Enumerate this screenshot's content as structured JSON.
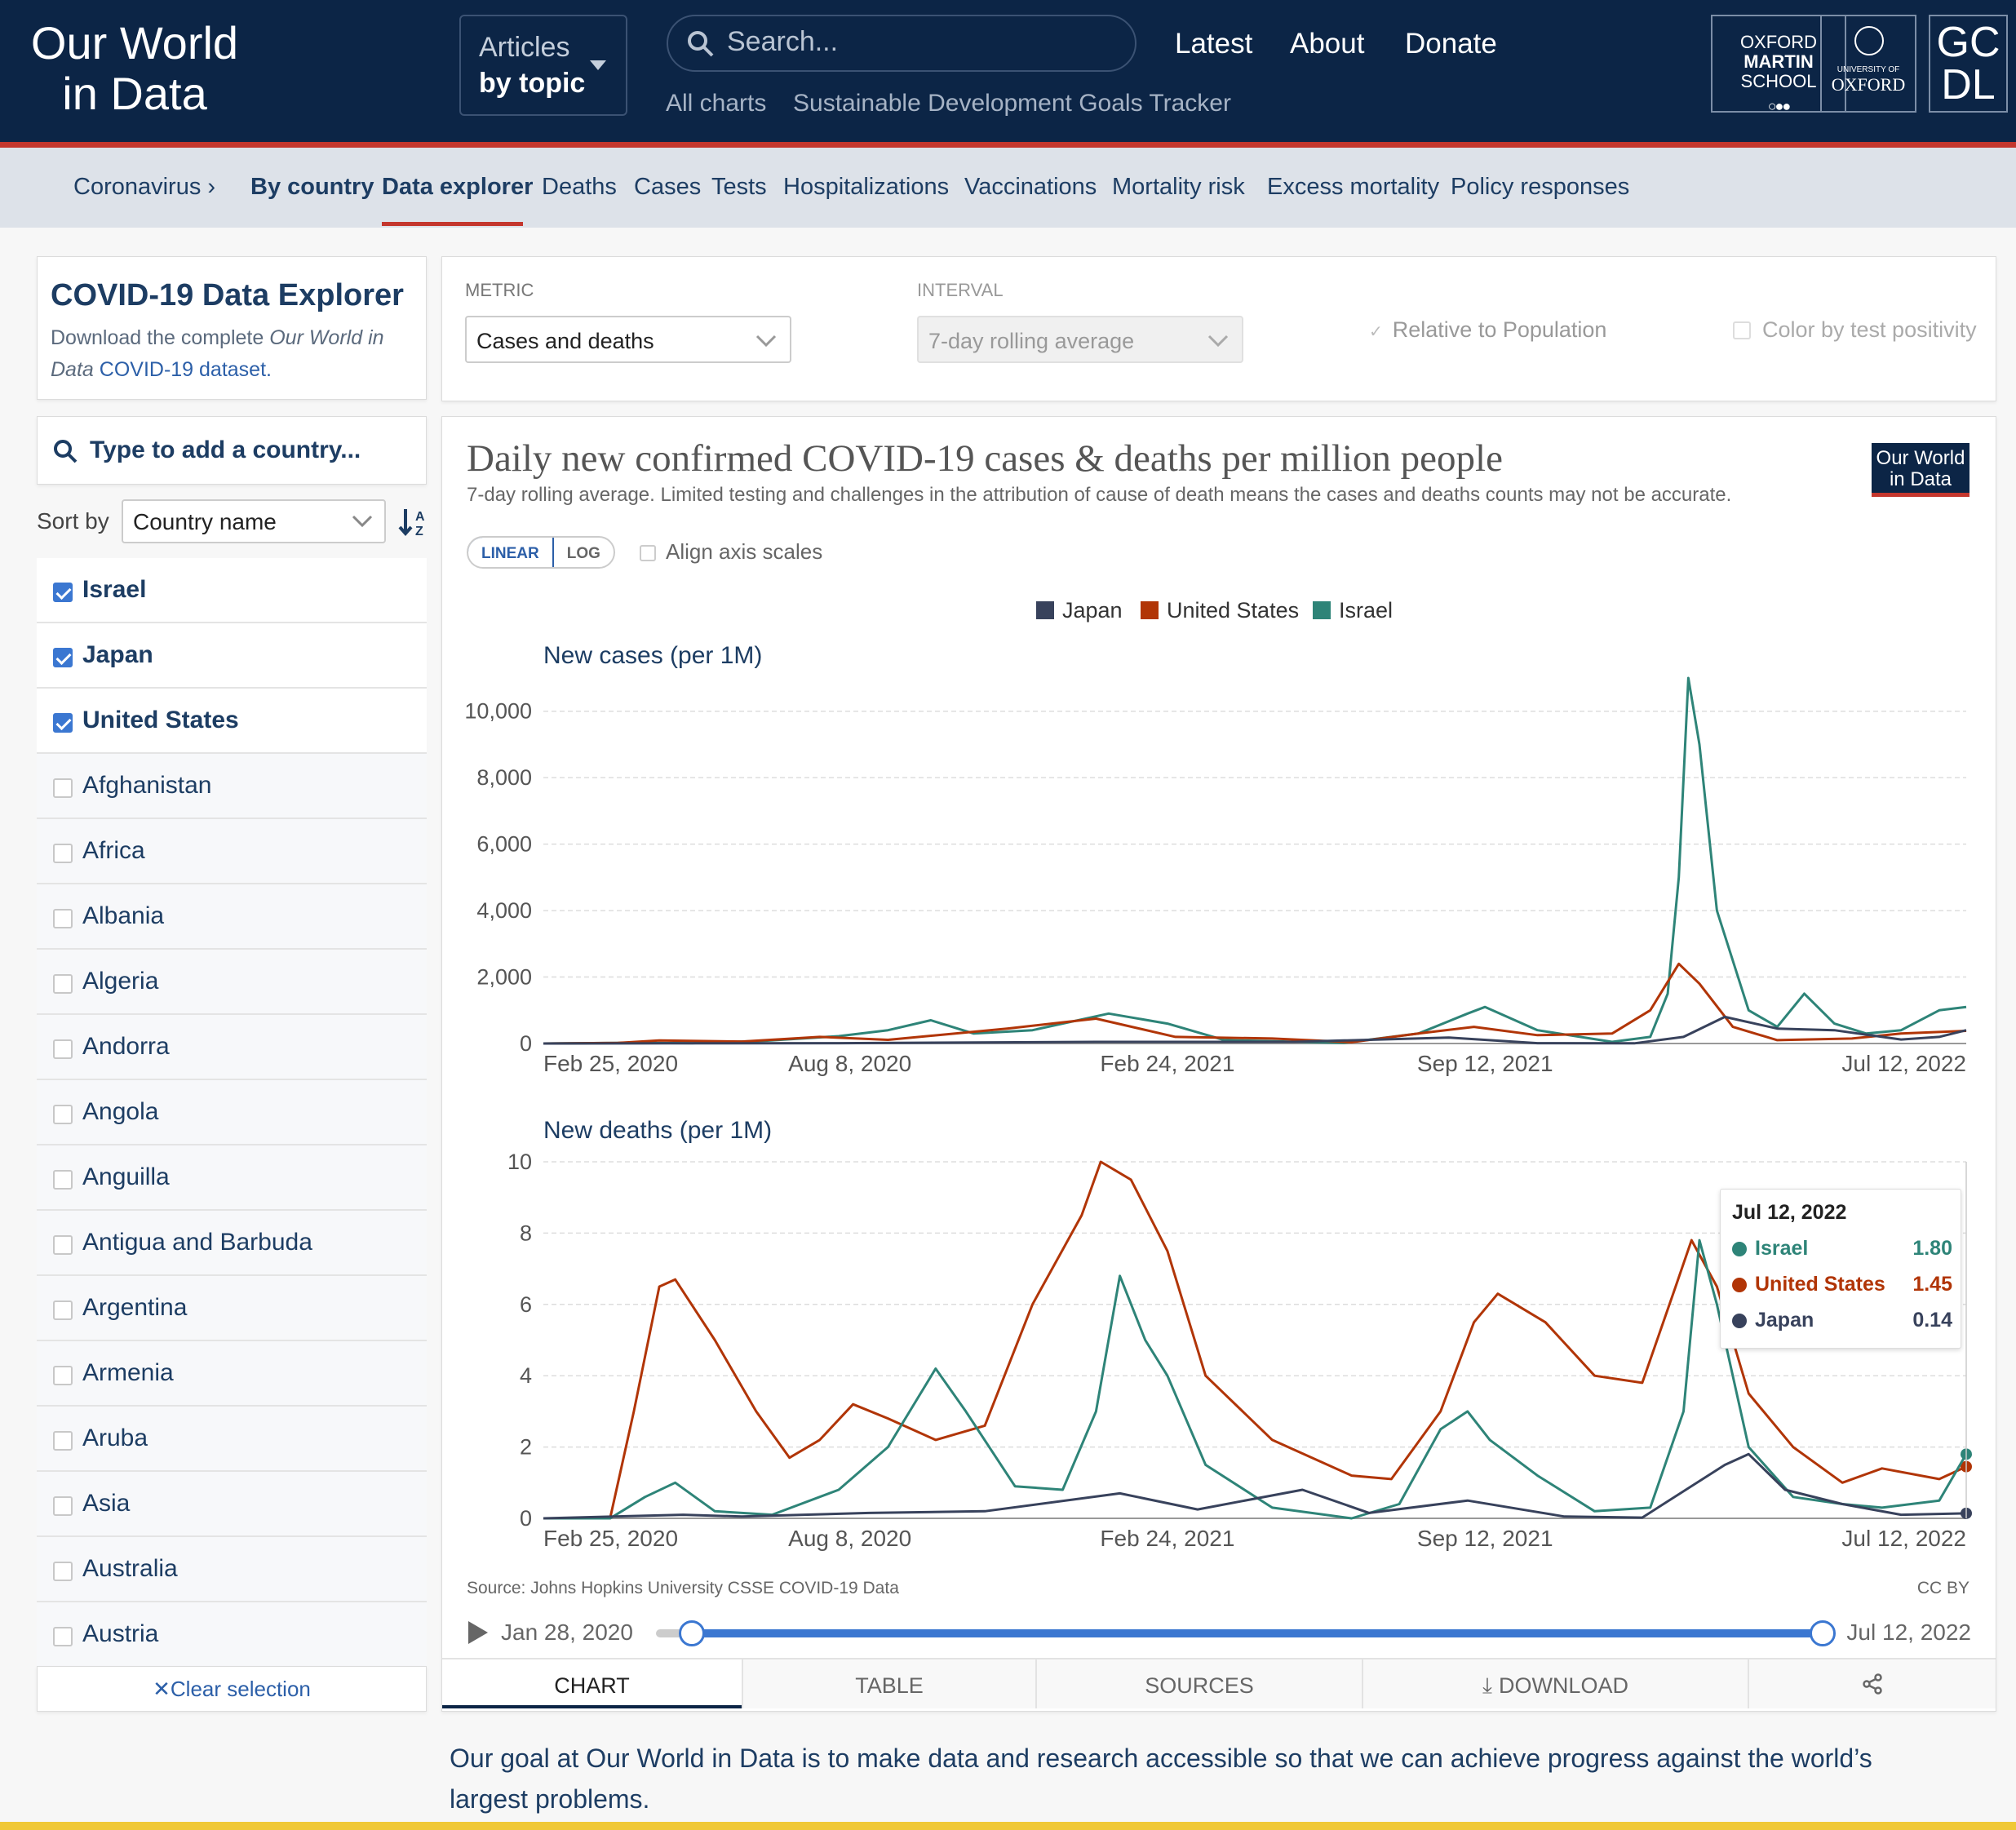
{
  "header": {
    "logo_line1": "Our World",
    "logo_line2": "in Data",
    "articles_line1": "Articles",
    "articles_line2": "by topic",
    "search_placeholder": "Search...",
    "nav": [
      "Latest",
      "About",
      "Donate"
    ],
    "subnav": [
      "All charts",
      "Sustainable Development Goals Tracker"
    ],
    "partner1": [
      "OXFORD",
      "MARTIN",
      "SCHOOL"
    ],
    "partner2_small": "UNIVERSITY OF",
    "partner2": "OXFORD",
    "partner3": [
      "GC",
      "DL"
    ]
  },
  "topicbar": {
    "items": [
      "Coronavirus ›",
      "By country",
      "Data explorer",
      "Deaths",
      "Cases",
      "Tests",
      "Hospitalizations",
      "Vaccinations",
      "Mortality risk",
      "Excess mortality",
      "Policy responses"
    ]
  },
  "sidebar": {
    "title": "COVID-19 Data Explorer",
    "desc_pre": "Download the complete ",
    "desc_em": "Our World in Data",
    "desc_link": "COVID-19 dataset.",
    "search_placeholder": "Type to add a country...",
    "sort_label": "Sort by",
    "sort_value": "Country name",
    "countries": [
      {
        "name": "Israel",
        "selected": true
      },
      {
        "name": "Japan",
        "selected": true
      },
      {
        "name": "United States",
        "selected": true
      },
      {
        "name": "Afghanistan",
        "selected": false
      },
      {
        "name": "Africa",
        "selected": false
      },
      {
        "name": "Albania",
        "selected": false
      },
      {
        "name": "Algeria",
        "selected": false
      },
      {
        "name": "Andorra",
        "selected": false
      },
      {
        "name": "Angola",
        "selected": false
      },
      {
        "name": "Anguilla",
        "selected": false
      },
      {
        "name": "Antigua and Barbuda",
        "selected": false
      },
      {
        "name": "Argentina",
        "selected": false
      },
      {
        "name": "Armenia",
        "selected": false
      },
      {
        "name": "Aruba",
        "selected": false
      },
      {
        "name": "Asia",
        "selected": false
      },
      {
        "name": "Australia",
        "selected": false
      },
      {
        "name": "Austria",
        "selected": false
      }
    ],
    "clear_selection": "Clear selection"
  },
  "controls": {
    "metric_label": "METRIC",
    "metric_value": "Cases and deaths",
    "interval_label": "INTERVAL",
    "interval_value": "7-day rolling average",
    "relative_label": "Relative to Population",
    "color_label": "Color by test positivity"
  },
  "chart": {
    "title": "Daily new confirmed COVID-19 cases & deaths per million people",
    "subtitle": "7-day rolling average. Limited testing and challenges in the attribution of cause of death means the cases and deaths counts may not be accurate.",
    "badge_line1": "Our World",
    "badge_line2": "in Data",
    "scale_linear": "LINEAR",
    "scale_log": "LOG",
    "align_label": "Align axis scales",
    "source": "Source: Johns Hopkins University CSSE COVID-19 Data",
    "license": "CC BY",
    "timeline_start": "Jan 28, 2020",
    "timeline_end": "Jul 12, 2022",
    "tooltip": {
      "date": "Jul 12, 2022",
      "rows": [
        {
          "name": "Israel",
          "value": "1.80",
          "color": "#2e8478"
        },
        {
          "name": "United States",
          "value": "1.45",
          "color": "#b13507"
        },
        {
          "name": "Japan",
          "value": "0.14",
          "color": "#38425c"
        }
      ]
    },
    "tabs": [
      "CHART",
      "TABLE",
      "SOURCES",
      "DOWNLOAD"
    ]
  },
  "chart_data": [
    {
      "type": "line",
      "title": "New cases (per 1M)",
      "x_ticks": [
        "Feb 25, 2020",
        "Aug 8, 2020",
        "Feb 24, 2021",
        "Sep 12, 2021",
        "Jul 12, 2022"
      ],
      "ylim": [
        0,
        11000
      ],
      "y_ticks": [
        "0",
        "2,000",
        "4,000",
        "6,000",
        "8,000",
        "10,000"
      ],
      "legend": [
        "Japan",
        "United States",
        "Israel"
      ],
      "colors": {
        "Japan": "#38425c",
        "United States": "#b13507",
        "Israel": "#2e8478"
      },
      "series": [
        {
          "name": "Israel",
          "x": [
            "2020-01-28",
            "2020-03-15",
            "2020-05-01",
            "2020-06-15",
            "2020-08-01",
            "2020-09-01",
            "2020-09-28",
            "2020-10-25",
            "2020-12-01",
            "2021-01-18",
            "2021-02-24",
            "2021-04-01",
            "2021-06-15",
            "2021-08-01",
            "2021-09-01",
            "2021-09-12",
            "2021-10-15",
            "2021-12-01",
            "2021-12-25",
            "2022-01-05",
            "2022-01-12",
            "2022-01-18",
            "2022-01-25",
            "2022-02-05",
            "2022-02-25",
            "2022-03-15",
            "2022-04-01",
            "2022-04-20",
            "2022-05-10",
            "2022-06-01",
            "2022-06-25",
            "2022-07-12"
          ],
          "values": [
            0,
            20,
            10,
            80,
            220,
            400,
            700,
            300,
            400,
            900,
            600,
            100,
            20,
            300,
            900,
            1100,
            400,
            50,
            200,
            1500,
            5000,
            11000,
            9000,
            4000,
            1000,
            500,
            1500,
            600,
            300,
            400,
            1000,
            1100
          ]
        },
        {
          "name": "United States",
          "x": [
            "2020-01-28",
            "2020-03-15",
            "2020-04-10",
            "2020-06-01",
            "2020-07-20",
            "2020-09-01",
            "2020-11-15",
            "2021-01-10",
            "2021-03-01",
            "2021-05-01",
            "2021-06-20",
            "2021-08-01",
            "2021-09-05",
            "2021-10-15",
            "2021-12-01",
            "2021-12-25",
            "2022-01-12",
            "2022-01-25",
            "2022-02-15",
            "2022-03-15",
            "2022-05-01",
            "2022-06-01",
            "2022-07-12"
          ],
          "values": [
            0,
            20,
            90,
            60,
            200,
            110,
            450,
            750,
            200,
            150,
            40,
            300,
            500,
            250,
            300,
            1000,
            2400,
            1800,
            500,
            100,
            150,
            300,
            380
          ]
        },
        {
          "name": "Japan",
          "x": [
            "2020-01-28",
            "2020-04-15",
            "2020-08-01",
            "2021-01-10",
            "2021-05-15",
            "2021-08-20",
            "2021-10-15",
            "2021-12-15",
            "2022-01-15",
            "2022-02-10",
            "2022-03-15",
            "2022-04-20",
            "2022-06-01",
            "2022-06-25",
            "2022-07-12"
          ],
          "values": [
            0,
            5,
            10,
            50,
            50,
            180,
            10,
            5,
            200,
            800,
            450,
            400,
            120,
            200,
            400
          ]
        }
      ]
    },
    {
      "type": "line",
      "title": "New deaths (per 1M)",
      "x_ticks": [
        "Feb 25, 2020",
        "Aug 8, 2020",
        "Feb 24, 2021",
        "Sep 12, 2021",
        "Jul 12, 2022"
      ],
      "ylim": [
        0,
        10
      ],
      "y_ticks": [
        "0",
        "2",
        "4",
        "6",
        "8",
        "10"
      ],
      "series": [
        {
          "name": "United States",
          "x": [
            "2020-01-28",
            "2020-03-10",
            "2020-03-25",
            "2020-04-10",
            "2020-04-20",
            "2020-05-15",
            "2020-06-10",
            "2020-07-01",
            "2020-07-20",
            "2020-08-10",
            "2020-09-01",
            "2020-10-01",
            "2020-11-01",
            "2020-12-01",
            "2021-01-01",
            "2021-01-13",
            "2021-02-01",
            "2021-02-24",
            "2021-03-20",
            "2021-05-01",
            "2021-06-20",
            "2021-07-15",
            "2021-08-15",
            "2021-09-05",
            "2021-09-20",
            "2021-10-20",
            "2021-11-20",
            "2021-12-20",
            "2022-01-10",
            "2022-01-20",
            "2022-02-05",
            "2022-02-25",
            "2022-03-25",
            "2022-04-25",
            "2022-05-20",
            "2022-06-25",
            "2022-07-12"
          ],
          "values": [
            0,
            0,
            3,
            6.5,
            6.7,
            5,
            3,
            1.7,
            2.2,
            3.2,
            2.8,
            2.2,
            2.6,
            6,
            8.5,
            10,
            9.5,
            7.5,
            4,
            2.2,
            1.2,
            1.1,
            3,
            5.5,
            6.3,
            5.5,
            4,
            3.8,
            6.5,
            7.8,
            6.5,
            3.5,
            2,
            1,
            1.4,
            1.1,
            1.45
          ]
        },
        {
          "name": "Israel",
          "x": [
            "2020-01-28",
            "2020-03-10",
            "2020-04-01",
            "2020-04-20",
            "2020-05-15",
            "2020-06-20",
            "2020-08-01",
            "2020-09-01",
            "2020-10-01",
            "2020-10-20",
            "2020-11-20",
            "2020-12-20",
            "2021-01-10",
            "2021-01-25",
            "2021-02-10",
            "2021-02-24",
            "2021-03-20",
            "2021-05-01",
            "2021-06-20",
            "2021-07-20",
            "2021-08-15",
            "2021-09-01",
            "2021-09-15",
            "2021-10-15",
            "2021-11-20",
            "2021-12-25",
            "2022-01-15",
            "2022-01-25",
            "2022-02-05",
            "2022-02-25",
            "2022-03-25",
            "2022-04-25",
            "2022-05-20",
            "2022-06-25",
            "2022-07-12"
          ],
          "values": [
            0,
            0,
            0.6,
            1,
            0.2,
            0.1,
            0.8,
            2,
            4.2,
            3,
            0.9,
            0.8,
            3,
            6.8,
            5,
            4,
            1.5,
            0.3,
            0,
            0.4,
            2.5,
            3,
            2.2,
            1.2,
            0.2,
            0.3,
            3,
            7.8,
            6,
            2,
            0.6,
            0.4,
            0.3,
            0.5,
            1.8
          ]
        },
        {
          "name": "Japan",
          "x": [
            "2020-01-28",
            "2020-04-25",
            "2020-06-01",
            "2020-08-20",
            "2020-11-01",
            "2021-01-25",
            "2021-03-15",
            "2021-05-20",
            "2021-07-01",
            "2021-09-01",
            "2021-11-01",
            "2021-12-20",
            "2022-02-10",
            "2022-02-25",
            "2022-03-20",
            "2022-04-25",
            "2022-06-01",
            "2022-07-12"
          ],
          "values": [
            0,
            0.1,
            0.05,
            0.15,
            0.2,
            0.7,
            0.25,
            0.8,
            0.15,
            0.5,
            0.05,
            0.02,
            1.5,
            1.8,
            0.8,
            0.4,
            0.1,
            0.14
          ]
        }
      ]
    }
  ],
  "footer_text": "Our goal at Our World in Data is to make data and research accessible so that we can achieve progress against the world’s largest problems."
}
